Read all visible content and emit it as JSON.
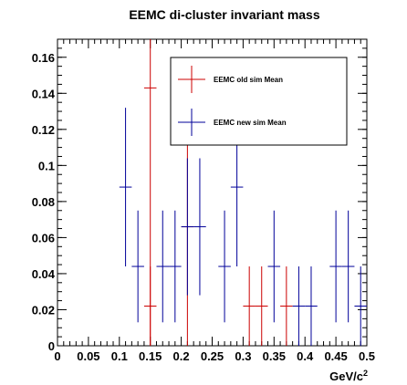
{
  "chart_data": {
    "type": "scatter",
    "title": "EEMC di-cluster invariant mass",
    "xlabel": "GeV/c",
    "xlabel_sup": "2",
    "ylabel": "",
    "xlim": [
      0,
      0.5
    ],
    "ylim": [
      0,
      0.17
    ],
    "xticks": [
      "0",
      "0.05",
      "0.1",
      "0.15",
      "0.2",
      "0.25",
      "0.3",
      "0.35",
      "0.4",
      "0.45",
      "0.5"
    ],
    "yticks": [
      "0",
      "0.02",
      "0.04",
      "0.06",
      "0.08",
      "0.1",
      "0.12",
      "0.14",
      "0.16"
    ],
    "bin_width": 0.02,
    "grid": false,
    "legend_position": "top-right",
    "series": [
      {
        "name": "EEMC old sim Mean",
        "color": "#cc0000",
        "points": [
          {
            "x": 0.15,
            "y": 0.143,
            "err": 0.143
          },
          {
            "x": 0.15,
            "y": 0.022,
            "err": 0.022
          },
          {
            "x": 0.21,
            "y": 0.066,
            "err": 0.066
          },
          {
            "x": 0.31,
            "y": 0.022,
            "err": 0.022
          },
          {
            "x": 0.33,
            "y": 0.022,
            "err": 0.022
          },
          {
            "x": 0.37,
            "y": 0.022,
            "err": 0.022
          }
        ]
      },
      {
        "name": "EEMC new sim Mean",
        "color": "#000099",
        "points": [
          {
            "x": 0.11,
            "y": 0.088,
            "err": 0.044
          },
          {
            "x": 0.13,
            "y": 0.044,
            "err": 0.031
          },
          {
            "x": 0.17,
            "y": 0.044,
            "err": 0.031
          },
          {
            "x": 0.19,
            "y": 0.044,
            "err": 0.031
          },
          {
            "x": 0.21,
            "y": 0.066,
            "err": 0.038
          },
          {
            "x": 0.23,
            "y": 0.066,
            "err": 0.038
          },
          {
            "x": 0.27,
            "y": 0.044,
            "err": 0.031
          },
          {
            "x": 0.29,
            "y": 0.088,
            "err": 0.044
          },
          {
            "x": 0.35,
            "y": 0.044,
            "err": 0.031
          },
          {
            "x": 0.39,
            "y": 0.022,
            "err": 0.022
          },
          {
            "x": 0.41,
            "y": 0.022,
            "err": 0.022
          },
          {
            "x": 0.45,
            "y": 0.044,
            "err": 0.031
          },
          {
            "x": 0.47,
            "y": 0.044,
            "err": 0.031
          },
          {
            "x": 0.49,
            "y": 0.022,
            "err": 0.022
          }
        ]
      }
    ]
  }
}
